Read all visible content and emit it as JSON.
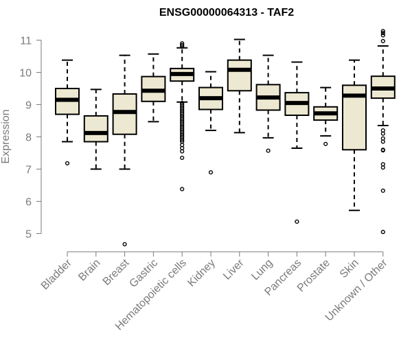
{
  "chart_data": {
    "type": "box",
    "title": "ENSG00000064313 - TAF2",
    "xlabel": "",
    "ylabel": "Expression",
    "ylim": [
      4.5,
      11.3
    ],
    "yticks": [
      5,
      6,
      7,
      8,
      9,
      10,
      11
    ],
    "box_fill": "#ede8d2",
    "box_stroke": "#000000",
    "axis_color": "#7a7a7a",
    "categories": [
      "Bladder",
      "Brain",
      "Breast",
      "Gastric",
      "Hematopoietic cells",
      "Kidney",
      "Liver",
      "Lung",
      "Pancreas",
      "Prostate",
      "Skin",
      "Unknown / Other"
    ],
    "boxes": [
      {
        "min": 7.85,
        "q1": 8.7,
        "median": 9.15,
        "q3": 9.5,
        "max": 10.38,
        "outliers": [
          7.18
        ]
      },
      {
        "min": 7.0,
        "q1": 7.85,
        "median": 8.12,
        "q3": 8.65,
        "max": 9.47,
        "outliers": []
      },
      {
        "min": 7.0,
        "q1": 8.08,
        "median": 8.77,
        "q3": 9.33,
        "max": 10.53,
        "outliers": [
          4.67
        ]
      },
      {
        "min": 8.47,
        "q1": 9.1,
        "median": 9.43,
        "q3": 9.87,
        "max": 10.57,
        "outliers": []
      },
      {
        "min": 9.08,
        "q1": 9.73,
        "median": 9.95,
        "q3": 10.12,
        "max": 10.76,
        "outliers": [
          10.8,
          10.85,
          10.9,
          9.05,
          9.0,
          8.95,
          8.9,
          8.85,
          8.8,
          8.75,
          8.7,
          8.65,
          8.6,
          8.55,
          8.5,
          8.45,
          8.4,
          8.35,
          8.3,
          8.25,
          8.2,
          8.15,
          8.1,
          8.05,
          8.0,
          7.95,
          7.9,
          7.85,
          7.75,
          7.65,
          7.55,
          7.35,
          6.38
        ]
      },
      {
        "min": 8.2,
        "q1": 8.85,
        "median": 9.2,
        "q3": 9.53,
        "max": 10.02,
        "outliers": [
          6.9
        ]
      },
      {
        "min": 8.13,
        "q1": 9.43,
        "median": 10.08,
        "q3": 10.38,
        "max": 11.02,
        "outliers": []
      },
      {
        "min": 7.97,
        "q1": 8.83,
        "median": 9.22,
        "q3": 9.62,
        "max": 10.53,
        "outliers": [
          7.57
        ]
      },
      {
        "min": 7.65,
        "q1": 8.67,
        "median": 9.05,
        "q3": 9.37,
        "max": 10.32,
        "outliers": [
          5.37
        ]
      },
      {
        "min": 8.03,
        "q1": 8.52,
        "median": 8.73,
        "q3": 8.93,
        "max": 9.53,
        "outliers": [
          7.78
        ]
      },
      {
        "min": 5.72,
        "q1": 7.6,
        "median": 9.28,
        "q3": 9.6,
        "max": 10.38,
        "outliers": []
      },
      {
        "min": 8.35,
        "q1": 9.2,
        "median": 9.5,
        "q3": 9.88,
        "max": 10.82,
        "outliers": [
          11.28,
          11.22,
          11.15,
          10.97,
          8.2,
          8.1,
          7.95,
          7.85,
          7.6,
          7.58,
          7.15,
          7.05,
          6.33,
          5.05
        ]
      }
    ]
  }
}
